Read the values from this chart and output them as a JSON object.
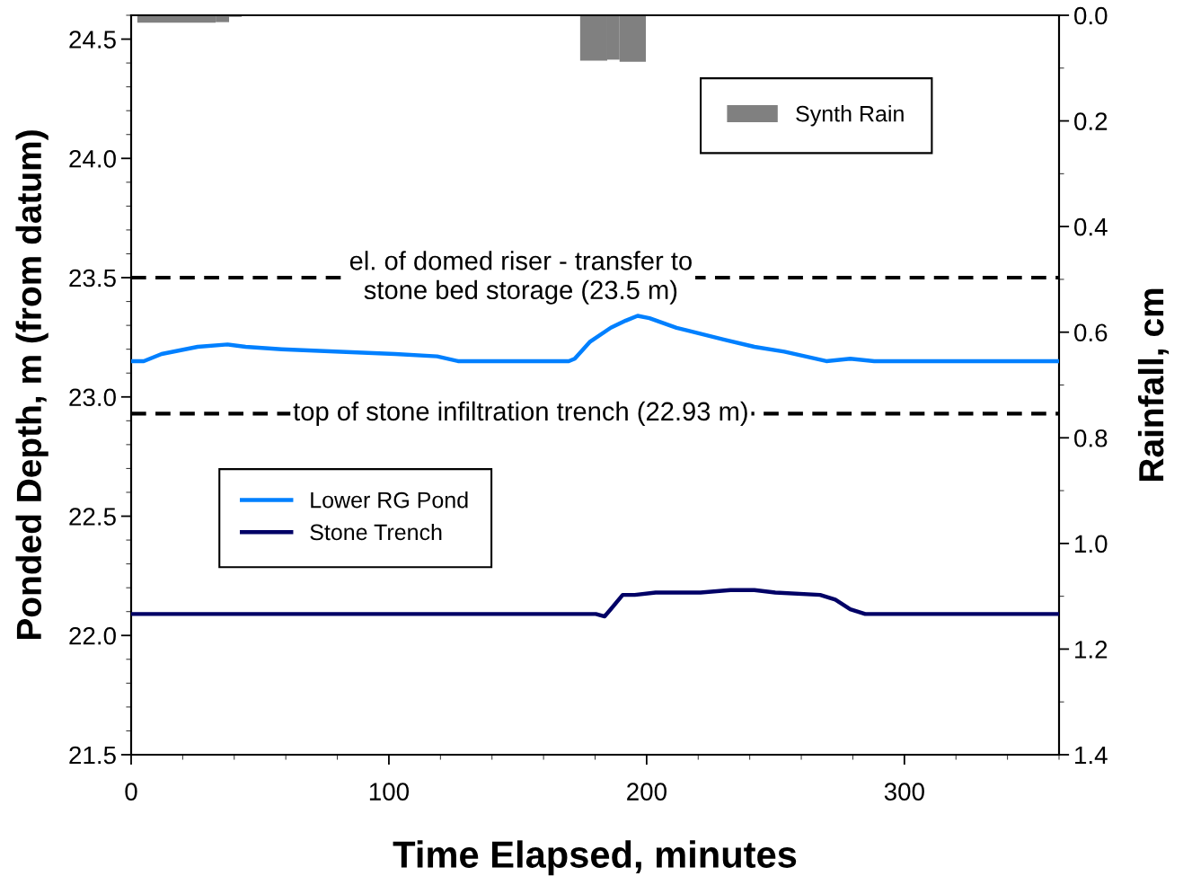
{
  "chart_data": {
    "type": "line",
    "xlabel": "Time Elapsed, minutes",
    "ylabel": "Ponded Depth, m (from datum)",
    "y2label": "Rainfall, cm",
    "xlim": [
      0,
      360
    ],
    "xticks": [
      0,
      100,
      200,
      300
    ],
    "ylim": [
      21.5,
      24.6
    ],
    "yticks": [
      {
        "value": 21.5,
        "label": "21.5"
      },
      {
        "value": 22.0,
        "label": "22.0"
      },
      {
        "value": 22.5,
        "label": "22.5"
      },
      {
        "value": 23.0,
        "label": "23.0"
      },
      {
        "value": 23.5,
        "label": "23.5"
      },
      {
        "value": 24.0,
        "label": "24.0"
      },
      {
        "value": 24.5,
        "label": "24.5"
      }
    ],
    "y2lim": [
      1.4,
      0.0
    ],
    "y2ticks": [
      {
        "value": 0.0,
        "label": "0.0"
      },
      {
        "value": 0.2,
        "label": "0.2"
      },
      {
        "value": 0.4,
        "label": "0.4"
      },
      {
        "value": 0.6,
        "label": "0.6"
      },
      {
        "value": 0.8,
        "label": "0.8"
      },
      {
        "value": 1.0,
        "label": "1.0"
      },
      {
        "value": 1.2,
        "label": "1.2"
      },
      {
        "value": 1.4,
        "label": "1.4"
      }
    ],
    "series": [
      {
        "name": "Lower RG Pond",
        "color": "#0080ff",
        "x": [
          0,
          4.9,
          11.8,
          25.8,
          37.4,
          44.4,
          58.4,
          79.2,
          102.4,
          118.7,
          126.8,
          137.3,
          160.5,
          165.2,
          169.8,
          172.1,
          177.9,
          186.1,
          191.9,
          196.5,
          201.1,
          211.6,
          230.2,
          241.8,
          253.4,
          269.7,
          279.0,
          288.3,
          311.6,
          360
        ],
        "values": [
          23.15,
          23.15,
          23.18,
          23.21,
          23.22,
          23.21,
          23.2,
          23.19,
          23.18,
          23.17,
          23.15,
          23.15,
          23.15,
          23.15,
          23.15,
          23.16,
          23.23,
          23.29,
          23.32,
          23.34,
          23.33,
          23.29,
          23.24,
          23.21,
          23.19,
          23.15,
          23.16,
          23.15,
          23.15,
          23.15
        ]
      },
      {
        "name": "Stone Trench",
        "color": "#000066",
        "x": [
          0,
          151.2,
          176.8,
          180.3,
          183.7,
          186.1,
          190.7,
          195.4,
          203.5,
          220.9,
          232.5,
          241.8,
          249.9,
          267.3,
          273.2,
          279.0,
          284.8,
          297.6,
          360
        ],
        "values": [
          22.09,
          22.09,
          22.09,
          22.09,
          22.08,
          22.11,
          22.17,
          22.17,
          22.18,
          22.18,
          22.19,
          22.19,
          22.18,
          22.17,
          22.15,
          22.11,
          22.09,
          22.09,
          22.09
        ]
      },
      {
        "name": "Synth Rain",
        "type": "histogram",
        "axis": "y2",
        "color": "#808080",
        "bins": [
          2.4,
          32.8,
          38,
          42.9,
          174.2,
          184.7,
          189.5,
          199.7
        ],
        "values": [
          0.014,
          0.013,
          0.003,
          null,
          0.086,
          0.084,
          0.088
        ]
      }
    ],
    "ref_lines": [
      {
        "axis": "y",
        "value": 23.5,
        "label": "el. of domed riser - transfer to\nstone bed storage (23.5 m)",
        "color": "#000000",
        "line_style": "dashed"
      },
      {
        "axis": "y",
        "value": 22.93,
        "label": "top of stone infiltration trench (22.93 m)",
        "color": "#000000",
        "line_style": "dashed"
      }
    ],
    "legend": "center left",
    "grid": false
  }
}
